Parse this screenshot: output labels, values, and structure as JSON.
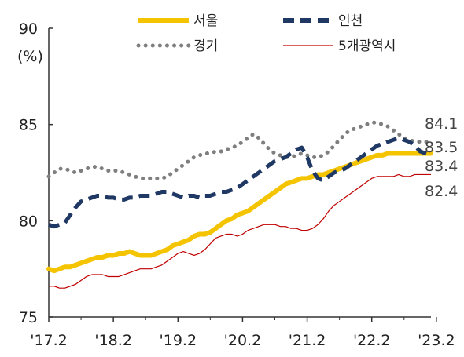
{
  "chart_data": {
    "type": "line",
    "title": "",
    "xlabel": "",
    "ylabel": "(%)",
    "ylim": [
      75,
      90
    ],
    "yticks": [
      75,
      80,
      85,
      90
    ],
    "x_labels": [
      "'17.2",
      "'18.2",
      "'19.2",
      "'20.2",
      "'21.2",
      "'22.2",
      "'23.2"
    ],
    "x_label_index": [
      0,
      12,
      24,
      36,
      48,
      60,
      72
    ],
    "grid": false,
    "legend_position": "top",
    "series": [
      {
        "name": "서울",
        "color": "#F5C400",
        "style": "solid-thick",
        "end_label": "83.5",
        "values": [
          77.5,
          77.4,
          77.5,
          77.6,
          77.6,
          77.7,
          77.8,
          77.9,
          78.0,
          78.1,
          78.1,
          78.2,
          78.2,
          78.3,
          78.3,
          78.4,
          78.3,
          78.2,
          78.2,
          78.2,
          78.3,
          78.4,
          78.5,
          78.7,
          78.8,
          78.9,
          79.0,
          79.2,
          79.3,
          79.3,
          79.4,
          79.6,
          79.8,
          80.0,
          80.1,
          80.3,
          80.4,
          80.5,
          80.7,
          80.9,
          81.1,
          81.3,
          81.5,
          81.7,
          81.9,
          82.0,
          82.1,
          82.2,
          82.2,
          82.3,
          82.4,
          82.4,
          82.5,
          82.6,
          82.7,
          82.8,
          82.9,
          83.0,
          83.1,
          83.2,
          83.3,
          83.4,
          83.4,
          83.5,
          83.5,
          83.5,
          83.5,
          83.5,
          83.5,
          83.5,
          83.5,
          83.5
        ]
      },
      {
        "name": "인천",
        "color": "#1F3864",
        "style": "dashed-thick",
        "end_label": "83.4",
        "values": [
          79.8,
          79.7,
          79.8,
          79.9,
          80.3,
          80.7,
          81.0,
          81.1,
          81.2,
          81.3,
          81.3,
          81.2,
          81.2,
          81.1,
          81.1,
          81.2,
          81.2,
          81.3,
          81.3,
          81.3,
          81.4,
          81.5,
          81.5,
          81.4,
          81.3,
          81.2,
          81.3,
          81.3,
          81.2,
          81.3,
          81.3,
          81.4,
          81.5,
          81.5,
          81.6,
          81.7,
          81.9,
          82.1,
          82.3,
          82.5,
          82.7,
          82.9,
          83.1,
          83.2,
          83.3,
          83.5,
          83.7,
          83.8,
          83.3,
          82.6,
          82.2,
          82.1,
          82.3,
          82.5,
          82.6,
          82.7,
          82.9,
          83.1,
          83.3,
          83.5,
          83.7,
          83.9,
          84.0,
          84.1,
          84.2,
          84.3,
          84.2,
          84.1,
          83.9,
          83.6,
          83.5,
          83.4
        ]
      },
      {
        "name": "경기",
        "color": "#7F7F7F",
        "style": "dotted",
        "end_label": "84.1",
        "values": [
          82.3,
          82.5,
          82.7,
          82.7,
          82.6,
          82.5,
          82.6,
          82.7,
          82.8,
          82.8,
          82.7,
          82.6,
          82.6,
          82.6,
          82.5,
          82.4,
          82.3,
          82.2,
          82.2,
          82.2,
          82.2,
          82.2,
          82.3,
          82.5,
          82.7,
          82.9,
          83.1,
          83.3,
          83.4,
          83.5,
          83.5,
          83.6,
          83.6,
          83.7,
          83.8,
          83.9,
          84.1,
          84.3,
          84.5,
          84.3,
          84.0,
          83.7,
          83.5,
          83.4,
          83.3,
          83.3,
          83.4,
          83.5,
          83.4,
          83.3,
          83.3,
          83.4,
          83.6,
          83.9,
          84.2,
          84.5,
          84.7,
          84.8,
          84.9,
          85.0,
          85.1,
          85.1,
          85.0,
          84.9,
          84.7,
          84.5,
          84.3,
          84.2,
          84.1,
          84.1,
          84.1,
          84.1
        ]
      },
      {
        "name": "5개광역시",
        "color": "#C00000",
        "style": "solid-thin",
        "end_label": "82.4",
        "values": [
          76.6,
          76.6,
          76.5,
          76.5,
          76.6,
          76.7,
          76.9,
          77.1,
          77.2,
          77.2,
          77.2,
          77.1,
          77.1,
          77.1,
          77.2,
          77.3,
          77.4,
          77.5,
          77.5,
          77.5,
          77.6,
          77.7,
          77.9,
          78.1,
          78.3,
          78.4,
          78.3,
          78.2,
          78.3,
          78.5,
          78.8,
          79.1,
          79.2,
          79.3,
          79.3,
          79.2,
          79.3,
          79.5,
          79.6,
          79.7,
          79.8,
          79.8,
          79.8,
          79.7,
          79.7,
          79.6,
          79.6,
          79.5,
          79.5,
          79.6,
          79.8,
          80.1,
          80.5,
          80.8,
          81.0,
          81.2,
          81.4,
          81.6,
          81.8,
          82.0,
          82.2,
          82.3,
          82.3,
          82.3,
          82.3,
          82.4,
          82.3,
          82.3,
          82.4,
          82.4,
          82.4,
          82.4
        ]
      }
    ]
  }
}
